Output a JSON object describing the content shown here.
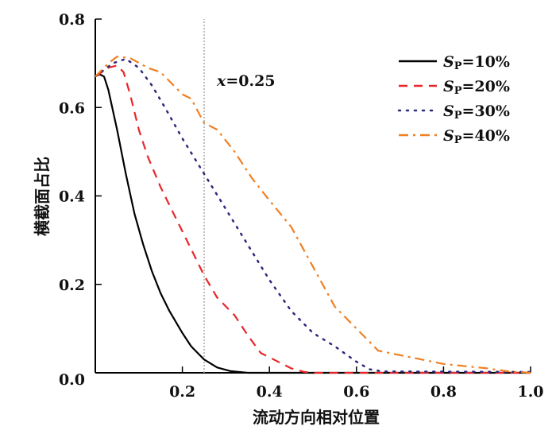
{
  "chart_data": {
    "type": "line",
    "title": "",
    "xlabel": "流动方向相对位置",
    "ylabel": "横截面占比",
    "xlim": [
      0,
      1.0
    ],
    "ylim": [
      0,
      0.8
    ],
    "xticks": [
      "0.2",
      "0.4",
      "0.6",
      "0.8",
      "1.0"
    ],
    "xtick_values": [
      0.2,
      0.4,
      0.6,
      0.8,
      1.0
    ],
    "yticks": [
      "0.0",
      "0.2",
      "0.4",
      "0.6",
      "0.8"
    ],
    "ytick_values": [
      0,
      0.2,
      0.4,
      0.6,
      0.8
    ],
    "grid": false,
    "legend_position": "top-right",
    "annotation": {
      "label_var": "x",
      "label_value": "=0.25",
      "x": 0.25,
      "style": "dotted vertical line"
    },
    "series": [
      {
        "name_var": "S",
        "name_sub": "P",
        "name_value": "=10%",
        "color": "#000000",
        "dash": "solid",
        "points": [
          [
            0,
            0.67
          ],
          [
            0.01,
            0.675
          ],
          [
            0.02,
            0.67
          ],
          [
            0.03,
            0.64
          ],
          [
            0.05,
            0.55
          ],
          [
            0.07,
            0.45
          ],
          [
            0.09,
            0.36
          ],
          [
            0.11,
            0.29
          ],
          [
            0.13,
            0.23
          ],
          [
            0.15,
            0.18
          ],
          [
            0.17,
            0.14
          ],
          [
            0.2,
            0.09
          ],
          [
            0.22,
            0.06
          ],
          [
            0.25,
            0.03
          ],
          [
            0.28,
            0.012
          ],
          [
            0.31,
            0.004
          ],
          [
            0.35,
            0
          ],
          [
            1.0,
            0
          ]
        ]
      },
      {
        "name_var": "S",
        "name_sub": "P",
        "name_value": "=20%",
        "color": "#e8262a",
        "dash": "dashed",
        "points": [
          [
            0,
            0.67
          ],
          [
            0.03,
            0.69
          ],
          [
            0.05,
            0.695
          ],
          [
            0.065,
            0.68
          ],
          [
            0.08,
            0.63
          ],
          [
            0.1,
            0.55
          ],
          [
            0.12,
            0.49
          ],
          [
            0.15,
            0.42
          ],
          [
            0.18,
            0.36
          ],
          [
            0.2,
            0.32
          ],
          [
            0.22,
            0.28
          ],
          [
            0.25,
            0.22
          ],
          [
            0.28,
            0.17
          ],
          [
            0.32,
            0.13
          ],
          [
            0.35,
            0.085
          ],
          [
            0.38,
            0.045
          ],
          [
            0.41,
            0.03
          ],
          [
            0.45,
            0.01
          ],
          [
            0.48,
            0.002
          ],
          [
            0.5,
            0
          ],
          [
            1.0,
            0
          ]
        ]
      },
      {
        "name_var": "S",
        "name_sub": "P",
        "name_value": "=30%",
        "color": "#2e2a7a",
        "dash": "dotted",
        "points": [
          [
            0,
            0.67
          ],
          [
            0.04,
            0.7
          ],
          [
            0.07,
            0.71
          ],
          [
            0.1,
            0.69
          ],
          [
            0.13,
            0.65
          ],
          [
            0.16,
            0.6
          ],
          [
            0.2,
            0.53
          ],
          [
            0.25,
            0.45
          ],
          [
            0.3,
            0.37
          ],
          [
            0.35,
            0.29
          ],
          [
            0.4,
            0.21
          ],
          [
            0.45,
            0.14
          ],
          [
            0.5,
            0.09
          ],
          [
            0.55,
            0.06
          ],
          [
            0.6,
            0.025
          ],
          [
            0.63,
            0.008
          ],
          [
            0.66,
            0.003
          ],
          [
            1.0,
            0.002
          ]
        ]
      },
      {
        "name_var": "S",
        "name_sub": "P",
        "name_value": "=40%",
        "color": "#f07f22",
        "dash": "dashdot",
        "points": [
          [
            0,
            0.67
          ],
          [
            0.03,
            0.7
          ],
          [
            0.05,
            0.715
          ],
          [
            0.08,
            0.712
          ],
          [
            0.12,
            0.69
          ],
          [
            0.15,
            0.68
          ],
          [
            0.18,
            0.65
          ],
          [
            0.2,
            0.63
          ],
          [
            0.22,
            0.62
          ],
          [
            0.25,
            0.565
          ],
          [
            0.28,
            0.55
          ],
          [
            0.32,
            0.5
          ],
          [
            0.36,
            0.44
          ],
          [
            0.4,
            0.39
          ],
          [
            0.45,
            0.33
          ],
          [
            0.5,
            0.24
          ],
          [
            0.55,
            0.15
          ],
          [
            0.6,
            0.1
          ],
          [
            0.65,
            0.05
          ],
          [
            0.7,
            0.04
          ],
          [
            0.75,
            0.03
          ],
          [
            0.8,
            0.02
          ],
          [
            0.9,
            0.01
          ],
          [
            0.95,
            0.003
          ],
          [
            1.0,
            0
          ]
        ]
      }
    ]
  }
}
